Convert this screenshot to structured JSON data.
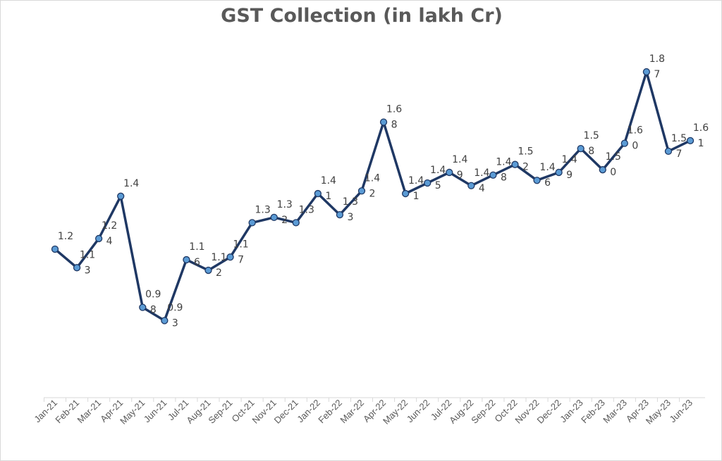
{
  "chart_data": {
    "type": "line",
    "title": "GST Collection (in lakh Cr)",
    "xlabel": "",
    "ylabel": "",
    "categories": [
      "Jan-21",
      "Feb-21",
      "Mar-21",
      "Apr-21",
      "May-21",
      "Jun-21",
      "Jul-21",
      "Aug-21",
      "Sep-21",
      "Oct-21",
      "Nov-21",
      "Dec-21",
      "Jan-22",
      "Feb-22",
      "Mar-22",
      "Apr-22",
      "May-22",
      "Jun-22",
      "Jul-22",
      "Aug-22",
      "Sep-22",
      "Oct-22",
      "Nov-22",
      "Dec-22",
      "Jan-23",
      "Feb-23",
      "Mar-23",
      "Apr-23",
      "May-23",
      "Jun-23"
    ],
    "values": [
      1.2,
      1.13,
      1.24,
      1.4,
      0.98,
      0.93,
      1.16,
      1.12,
      1.17,
      1.3,
      1.32,
      1.3,
      1.41,
      1.33,
      1.42,
      1.68,
      1.41,
      1.45,
      1.49,
      1.44,
      1.48,
      1.52,
      1.46,
      1.49,
      1.58,
      1.5,
      1.6,
      1.87,
      1.57,
      1.61
    ],
    "data_labels": [
      "1.2",
      "1.1\n3",
      "1.2\n4",
      "1.4",
      "0.9\n8",
      "0.9\n3",
      "1.1\n6",
      "1.1\n2",
      "1.1\n7",
      "1.3",
      "1.3\n2",
      "1.3",
      "1.4\n1",
      "1.3\n3",
      "1.4\n2",
      "1.6\n8",
      "1.4\n1",
      "1.4\n5",
      "1.4\n9",
      "1.4\n4",
      "1.4\n8",
      "1.5\n2",
      "1.4\n6",
      "1.4\n9",
      "1.5\n8",
      "1.5\n0",
      "1.6\n0",
      "1.8\n7",
      "1.5\n7",
      "1.6\n1"
    ],
    "line_color": "#1f3864",
    "marker_color": "#5b9bd5",
    "grid": false,
    "legend": "none"
  }
}
